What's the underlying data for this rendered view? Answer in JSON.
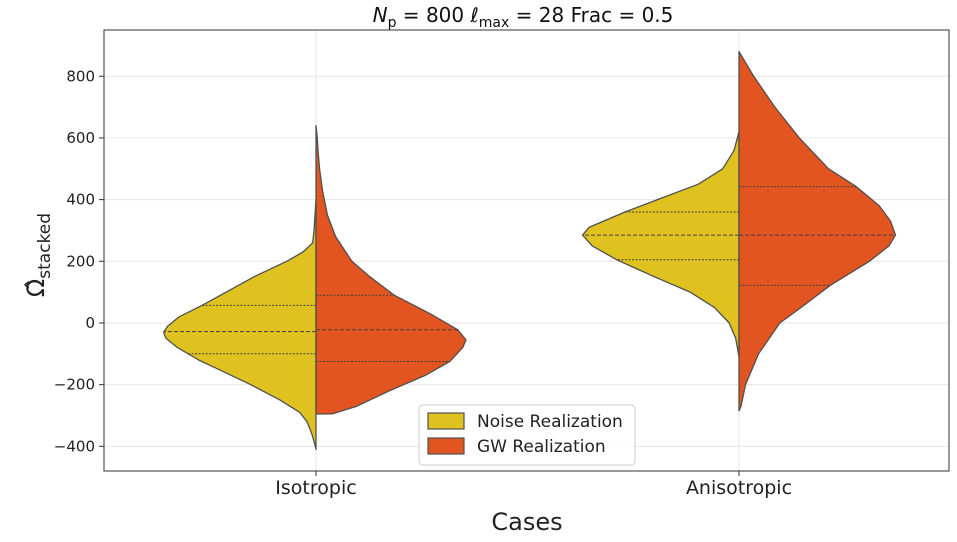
{
  "chart_data": {
    "type": "violin",
    "split": true,
    "title": {
      "np_symbol": "N",
      "np_sub": "p",
      "np_value": "800",
      "lmax_symbol": "ℓ",
      "lmax_sub": "max",
      "lmax_value": "28",
      "frac_label": "Frac",
      "frac_value": "0.5"
    },
    "xlabel": "Cases",
    "ylabel": {
      "base": "Ω̂",
      "sub": "stacked"
    },
    "ylim": [
      -480,
      950
    ],
    "yticks": [
      -400,
      -200,
      0,
      200,
      400,
      600,
      800
    ],
    "ytick_labels": [
      "−400",
      "−200",
      "0",
      "200",
      "400",
      "600",
      "800"
    ],
    "categories": [
      "Isotropic",
      "Anisotropic"
    ],
    "grid": true,
    "legend_position": "lower-center",
    "series": [
      {
        "name": "Noise Realization",
        "side": "left",
        "color": "#dfc21f",
        "violins": [
          {
            "category": "Isotropic",
            "min": -410,
            "max": 400,
            "quartiles": [
              -100,
              -28,
              57
            ],
            "profile": [
              [
                -410,
                0.0
              ],
              [
                -400,
                0.004
              ],
              [
                -360,
                0.025
              ],
              [
                -320,
                0.055
              ],
              [
                -290,
                0.1
              ],
              [
                -250,
                0.22
              ],
              [
                -200,
                0.4
              ],
              [
                -150,
                0.6
              ],
              [
                -120,
                0.72
              ],
              [
                -80,
                0.85
              ],
              [
                -50,
                0.92
              ],
              [
                -30,
                0.935
              ],
              [
                -10,
                0.91
              ],
              [
                20,
                0.84
              ],
              [
                57,
                0.7
              ],
              [
                100,
                0.55
              ],
              [
                150,
                0.38
              ],
              [
                200,
                0.18
              ],
              [
                230,
                0.08
              ],
              [
                260,
                0.02
              ],
              [
                300,
                0.012
              ],
              [
                350,
                0.006
              ],
              [
                400,
                0.0
              ]
            ]
          },
          {
            "category": "Anisotropic",
            "min": -110,
            "max": 620,
            "quartiles": [
              205,
              285,
              360
            ],
            "profile": [
              [
                -110,
                0.0
              ],
              [
                -50,
                0.02
              ],
              [
                0,
                0.06
              ],
              [
                50,
                0.15
              ],
              [
                100,
                0.3
              ],
              [
                150,
                0.52
              ],
              [
                205,
                0.75
              ],
              [
                250,
                0.9
              ],
              [
                285,
                0.96
              ],
              [
                310,
                0.92
              ],
              [
                360,
                0.7
              ],
              [
                400,
                0.5
              ],
              [
                450,
                0.25
              ],
              [
                500,
                0.1
              ],
              [
                560,
                0.03
              ],
              [
                620,
                0.0
              ]
            ]
          }
        ]
      },
      {
        "name": "GW Realization",
        "side": "right",
        "color": "#e25420",
        "violins": [
          {
            "category": "Isotropic",
            "min": -295,
            "max": 640,
            "quartiles": [
              -125,
              -22,
              90
            ],
            "profile": [
              [
                -295,
                0.1
              ],
              [
                -270,
                0.25
              ],
              [
                -220,
                0.45
              ],
              [
                -170,
                0.67
              ],
              [
                -125,
                0.82
              ],
              [
                -80,
                0.9
              ],
              [
                -55,
                0.92
              ],
              [
                -22,
                0.87
              ],
              [
                30,
                0.7
              ],
              [
                90,
                0.48
              ],
              [
                150,
                0.33
              ],
              [
                200,
                0.22
              ],
              [
                280,
                0.12
              ],
              [
                350,
                0.07
              ],
              [
                430,
                0.04
              ],
              [
                500,
                0.022
              ],
              [
                560,
                0.012
              ],
              [
                600,
                0.008
              ],
              [
                640,
                0.0
              ]
            ]
          },
          {
            "category": "Anisotropic",
            "min": -285,
            "max": 885,
            "quartiles": [
              122,
              285,
              442
            ],
            "profile": [
              [
                -285,
                0.0
              ],
              [
                -270,
                0.012
              ],
              [
                -200,
                0.04
              ],
              [
                -100,
                0.12
              ],
              [
                0,
                0.25
              ],
              [
                50,
                0.38
              ],
              [
                122,
                0.56
              ],
              [
                200,
                0.8
              ],
              [
                250,
                0.92
              ],
              [
                285,
                0.96
              ],
              [
                330,
                0.93
              ],
              [
                380,
                0.86
              ],
              [
                442,
                0.72
              ],
              [
                500,
                0.55
              ],
              [
                600,
                0.37
              ],
              [
                700,
                0.22
              ],
              [
                800,
                0.09
              ],
              [
                880,
                0.0
              ]
            ]
          }
        ]
      }
    ]
  }
}
